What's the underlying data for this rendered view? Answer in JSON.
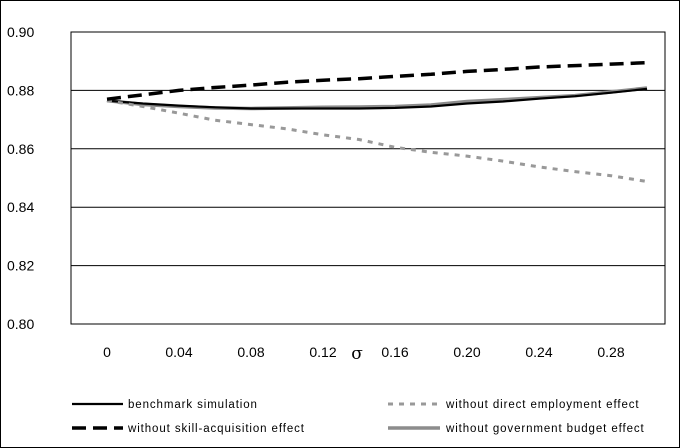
{
  "chart_data": {
    "type": "line",
    "title": "",
    "xlabel": "σ",
    "ylabel": "",
    "x": [
      0,
      0.02,
      0.04,
      0.06,
      0.08,
      0.1,
      0.12,
      0.14,
      0.16,
      0.18,
      0.2,
      0.22,
      0.24,
      0.26,
      0.28,
      0.3
    ],
    "x_ticks": [
      "0",
      "0.04",
      "0.08",
      "0.12",
      "0.16",
      "0.20",
      "0.24",
      "0.28"
    ],
    "y_ticks": [
      "0.80",
      "0.82",
      "0.84",
      "0.86",
      "0.88",
      "0.90"
    ],
    "xlim": [
      -0.02,
      0.31
    ],
    "ylim": [
      0.8,
      0.9
    ],
    "grid": "horizontal",
    "legend_position": "bottom",
    "series": [
      {
        "name": "benchmark simulation",
        "color": "#000000",
        "style": "solid",
        "values": [
          0.8765,
          0.8755,
          0.8748,
          0.8742,
          0.8738,
          0.8738,
          0.8738,
          0.8738,
          0.874,
          0.8745,
          0.8755,
          0.8762,
          0.8772,
          0.878,
          0.8792,
          0.8805
        ]
      },
      {
        "name": "without skill-acquisition effect",
        "color": "#000000",
        "style": "dashed",
        "values": [
          0.877,
          0.8785,
          0.88,
          0.881,
          0.8818,
          0.8828,
          0.8835,
          0.884,
          0.8848,
          0.8855,
          0.8865,
          0.8872,
          0.888,
          0.8885,
          0.889,
          0.8895
        ]
      },
      {
        "name": "without direct employment effect",
        "color": "#999999",
        "style": "dotted",
        "values": [
          0.8765,
          0.8745,
          0.8722,
          0.8698,
          0.8683,
          0.8668,
          0.8648,
          0.8632,
          0.8605,
          0.8588,
          0.8575,
          0.8558,
          0.8538,
          0.8522,
          0.8508,
          0.8488
        ]
      },
      {
        "name": "without government budget effect",
        "color": "#8c8c8c",
        "style": "solid",
        "values": [
          0.8765,
          0.8752,
          0.8745,
          0.874,
          0.8738,
          0.874,
          0.8742,
          0.8743,
          0.8745,
          0.875,
          0.8762,
          0.8768,
          0.8775,
          0.8782,
          0.8795,
          0.8808
        ]
      }
    ]
  }
}
